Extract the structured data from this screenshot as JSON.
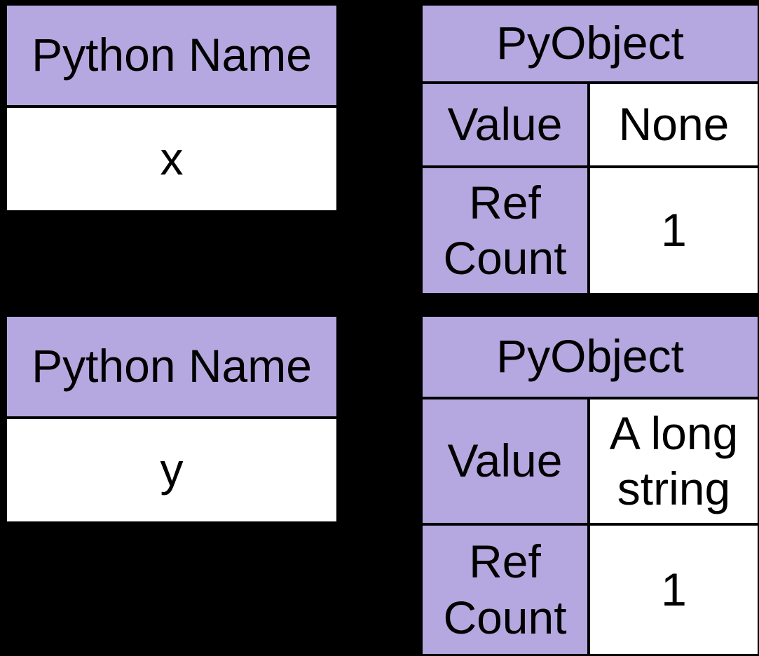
{
  "colors": {
    "background": "#000000",
    "purple": "#b5a8e0",
    "cell_white": "#ffffff",
    "text": "#000000",
    "divider": "#000000"
  },
  "diagram": {
    "description": "Python names referencing PyObjects",
    "name_tables": [
      {
        "header": "Python Name",
        "value": "x"
      },
      {
        "header": "Python Name",
        "value": "y"
      }
    ],
    "pyobject_tables": [
      {
        "header": "PyObject",
        "rows": [
          {
            "label": "Value",
            "value": "None"
          },
          {
            "label": "Ref Count",
            "value": "1"
          }
        ]
      },
      {
        "header": "PyObject",
        "rows": [
          {
            "label": "Value",
            "value": "A long string"
          },
          {
            "label": "Ref Count",
            "value": "1"
          }
        ]
      }
    ]
  }
}
